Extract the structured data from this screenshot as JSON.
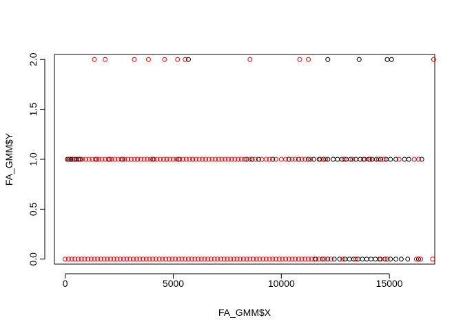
{
  "chart_data": {
    "type": "scatter",
    "xlabel": "FA_GMM$X",
    "ylabel": "FA_GMM$Y",
    "xlim": [
      -500,
      17100
    ],
    "ylim": [
      -0.05,
      2.05
    ],
    "x_ticks": [
      0,
      5000,
      10000,
      15000
    ],
    "x_tick_labels": [
      "0",
      "5000",
      "10000",
      "15000"
    ],
    "y_ticks": [
      0.0,
      0.5,
      1.0,
      1.5,
      2.0
    ],
    "y_tick_labels": [
      "0.0",
      "0.5",
      "1.0",
      "1.5",
      "2.0"
    ],
    "marker": "open-circle",
    "grid": false,
    "legend": "none",
    "series": [
      {
        "color": "#000000",
        "points": [
          [
            100,
            1
          ],
          [
            180,
            1
          ],
          [
            260,
            1
          ],
          [
            330,
            1
          ],
          [
            420,
            1
          ],
          [
            500,
            1
          ],
          [
            610,
            1
          ],
          [
            700,
            1
          ],
          [
            1450,
            1
          ],
          [
            2050,
            1
          ],
          [
            2650,
            1
          ],
          [
            3350,
            1
          ],
          [
            4050,
            1
          ],
          [
            4700,
            1
          ],
          [
            5250,
            1
          ],
          [
            5900,
            1
          ],
          [
            8400,
            1
          ],
          [
            8650,
            1
          ],
          [
            8950,
            1
          ],
          [
            9600,
            1
          ],
          [
            10350,
            1
          ],
          [
            10800,
            1
          ],
          [
            11250,
            1
          ],
          [
            11500,
            1
          ],
          [
            11750,
            1
          ],
          [
            11950,
            1
          ],
          [
            12150,
            1
          ],
          [
            12400,
            1
          ],
          [
            12600,
            1
          ],
          [
            12800,
            1
          ],
          [
            13000,
            1
          ],
          [
            13200,
            1
          ],
          [
            13450,
            1
          ],
          [
            13650,
            1
          ],
          [
            13850,
            1
          ],
          [
            14050,
            1
          ],
          [
            14200,
            1
          ],
          [
            14400,
            1
          ],
          [
            14600,
            1
          ],
          [
            14850,
            1
          ],
          [
            15050,
            1
          ],
          [
            15300,
            1
          ],
          [
            15700,
            1
          ],
          [
            15900,
            1
          ],
          [
            16500,
            1
          ],
          [
            11600,
            0
          ],
          [
            11900,
            0
          ],
          [
            12150,
            0
          ],
          [
            12450,
            0
          ],
          [
            12700,
            0
          ],
          [
            12950,
            0
          ],
          [
            13150,
            0
          ],
          [
            13350,
            0
          ],
          [
            13550,
            0
          ],
          [
            13750,
            0
          ],
          [
            13950,
            0
          ],
          [
            14150,
            0
          ],
          [
            14350,
            0
          ],
          [
            14550,
            0
          ],
          [
            14800,
            0
          ],
          [
            15050,
            0
          ],
          [
            15300,
            0
          ],
          [
            15550,
            0
          ],
          [
            15850,
            0
          ],
          [
            16350,
            0
          ],
          [
            5700,
            2
          ],
          [
            12150,
            2
          ],
          [
            13600,
            2
          ],
          [
            14900,
            2
          ],
          [
            15100,
            2
          ]
        ]
      },
      {
        "color": "#ff0000",
        "points": [
          [
            150,
            1
          ],
          [
            400,
            1
          ],
          [
            650,
            1
          ],
          [
            800,
            1
          ],
          [
            950,
            1
          ],
          [
            1100,
            1
          ],
          [
            1250,
            1
          ],
          [
            1400,
            1
          ],
          [
            1550,
            1
          ],
          [
            1700,
            1
          ],
          [
            1850,
            1
          ],
          [
            2000,
            1
          ],
          [
            2150,
            1
          ],
          [
            2300,
            1
          ],
          [
            2450,
            1
          ],
          [
            2600,
            1
          ],
          [
            2750,
            1
          ],
          [
            2900,
            1
          ],
          [
            3050,
            1
          ],
          [
            3200,
            1
          ],
          [
            3350,
            1
          ],
          [
            3500,
            1
          ],
          [
            3650,
            1
          ],
          [
            3800,
            1
          ],
          [
            3950,
            1
          ],
          [
            4100,
            1
          ],
          [
            4250,
            1
          ],
          [
            4400,
            1
          ],
          [
            4550,
            1
          ],
          [
            4700,
            1
          ],
          [
            4850,
            1
          ],
          [
            5000,
            1
          ],
          [
            5150,
            1
          ],
          [
            5300,
            1
          ],
          [
            5450,
            1
          ],
          [
            5600,
            1
          ],
          [
            5750,
            1
          ],
          [
            5900,
            1
          ],
          [
            6050,
            1
          ],
          [
            6200,
            1
          ],
          [
            6350,
            1
          ],
          [
            6500,
            1
          ],
          [
            6650,
            1
          ],
          [
            6800,
            1
          ],
          [
            6950,
            1
          ],
          [
            7100,
            1
          ],
          [
            7250,
            1
          ],
          [
            7400,
            1
          ],
          [
            7550,
            1
          ],
          [
            7700,
            1
          ],
          [
            7850,
            1
          ],
          [
            8000,
            1
          ],
          [
            8150,
            1
          ],
          [
            8300,
            1
          ],
          [
            8550,
            1
          ],
          [
            8800,
            1
          ],
          [
            9100,
            1
          ],
          [
            9300,
            1
          ],
          [
            9450,
            1
          ],
          [
            9750,
            1
          ],
          [
            10000,
            1
          ],
          [
            10200,
            1
          ],
          [
            10500,
            1
          ],
          [
            10650,
            1
          ],
          [
            10950,
            1
          ],
          [
            11100,
            1
          ],
          [
            11350,
            1
          ],
          [
            11800,
            1
          ],
          [
            12050,
            1
          ],
          [
            12900,
            1
          ],
          [
            13300,
            1
          ],
          [
            13800,
            1
          ],
          [
            14100,
            1
          ],
          [
            14500,
            1
          ],
          [
            14750,
            1
          ],
          [
            15450,
            1
          ],
          [
            16150,
            1
          ],
          [
            16350,
            1
          ],
          [
            0,
            0
          ],
          [
            150,
            0
          ],
          [
            300,
            0
          ],
          [
            450,
            0
          ],
          [
            600,
            0
          ],
          [
            750,
            0
          ],
          [
            900,
            0
          ],
          [
            1050,
            0
          ],
          [
            1200,
            0
          ],
          [
            1350,
            0
          ],
          [
            1500,
            0
          ],
          [
            1650,
            0
          ],
          [
            1800,
            0
          ],
          [
            1950,
            0
          ],
          [
            2100,
            0
          ],
          [
            2250,
            0
          ],
          [
            2400,
            0
          ],
          [
            2550,
            0
          ],
          [
            2700,
            0
          ],
          [
            2850,
            0
          ],
          [
            3000,
            0
          ],
          [
            3150,
            0
          ],
          [
            3300,
            0
          ],
          [
            3450,
            0
          ],
          [
            3600,
            0
          ],
          [
            3750,
            0
          ],
          [
            3900,
            0
          ],
          [
            4050,
            0
          ],
          [
            4200,
            0
          ],
          [
            4350,
            0
          ],
          [
            4500,
            0
          ],
          [
            4650,
            0
          ],
          [
            4800,
            0
          ],
          [
            4950,
            0
          ],
          [
            5100,
            0
          ],
          [
            5250,
            0
          ],
          [
            5400,
            0
          ],
          [
            5550,
            0
          ],
          [
            5700,
            0
          ],
          [
            5850,
            0
          ],
          [
            6000,
            0
          ],
          [
            6150,
            0
          ],
          [
            6300,
            0
          ],
          [
            6450,
            0
          ],
          [
            6600,
            0
          ],
          [
            6750,
            0
          ],
          [
            6900,
            0
          ],
          [
            7050,
            0
          ],
          [
            7200,
            0
          ],
          [
            7350,
            0
          ],
          [
            7500,
            0
          ],
          [
            7650,
            0
          ],
          [
            7800,
            0
          ],
          [
            7950,
            0
          ],
          [
            8100,
            0
          ],
          [
            8250,
            0
          ],
          [
            8400,
            0
          ],
          [
            8550,
            0
          ],
          [
            8700,
            0
          ],
          [
            8850,
            0
          ],
          [
            9000,
            0
          ],
          [
            9150,
            0
          ],
          [
            9300,
            0
          ],
          [
            9450,
            0
          ],
          [
            9600,
            0
          ],
          [
            9750,
            0
          ],
          [
            9900,
            0
          ],
          [
            10050,
            0
          ],
          [
            10200,
            0
          ],
          [
            10350,
            0
          ],
          [
            10500,
            0
          ],
          [
            10650,
            0
          ],
          [
            10800,
            0
          ],
          [
            10950,
            0
          ],
          [
            11100,
            0
          ],
          [
            11250,
            0
          ],
          [
            11400,
            0
          ],
          [
            11550,
            0
          ],
          [
            11750,
            0
          ],
          [
            12000,
            0
          ],
          [
            12300,
            0
          ],
          [
            12850,
            0
          ],
          [
            13450,
            0
          ],
          [
            14600,
            0
          ],
          [
            14900,
            0
          ],
          [
            16250,
            0
          ],
          [
            16450,
            0
          ],
          [
            17000,
            0
          ],
          [
            1350,
            2
          ],
          [
            1850,
            2
          ],
          [
            3200,
            2
          ],
          [
            3850,
            2
          ],
          [
            4600,
            2
          ],
          [
            5200,
            2
          ],
          [
            5550,
            2
          ],
          [
            8550,
            2
          ],
          [
            10850,
            2
          ],
          [
            11250,
            2
          ],
          [
            17050,
            2
          ]
        ]
      }
    ]
  }
}
